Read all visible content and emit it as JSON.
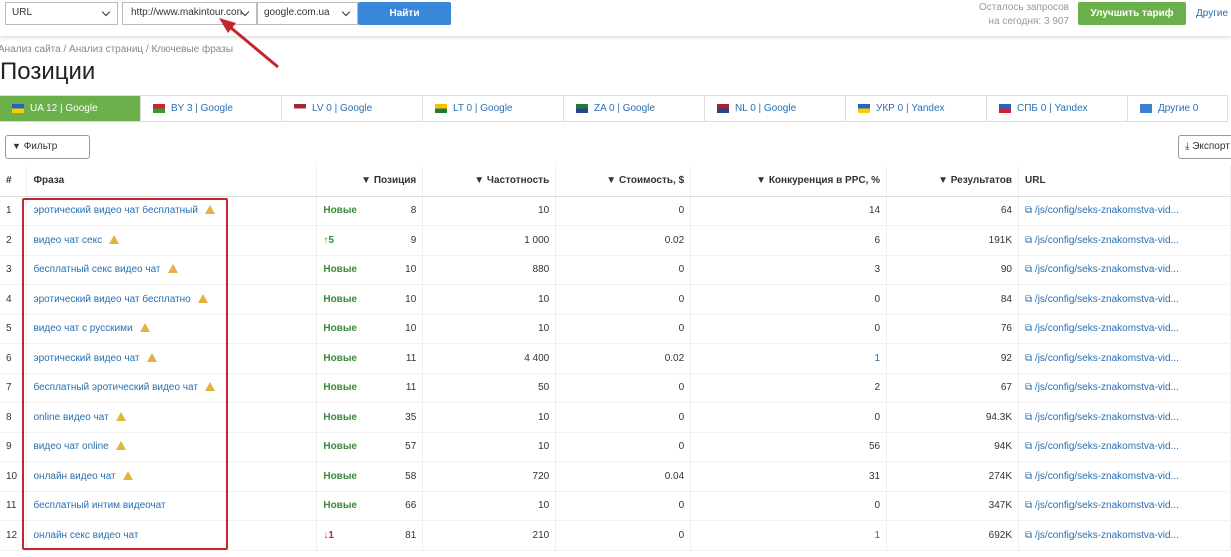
{
  "toolbar": {
    "url_select": "URL",
    "url_input": "http://www.makintour.con",
    "engine_select": "google.com.ua",
    "search_button": "Найти",
    "quota_line1": "Осталось запросов",
    "quota_line2": "на сегодня: 3 907",
    "upgrade_button": "Улучшить тариф",
    "other_link": "Другие"
  },
  "breadcrumbs": "Анализ сайта / Анализ страниц / Ключевые фразы",
  "title": "Позиции",
  "tabs": [
    {
      "label": "UA 12 | Google",
      "flag": [
        "#2a5fc4",
        "#f5d000"
      ]
    },
    {
      "label": "BY 3 | Google",
      "flag": [
        "#d02030",
        "#2f9a3c"
      ]
    },
    {
      "label": "LV 0 | Google",
      "flag": [
        "#a02a35",
        "#ffffff"
      ]
    },
    {
      "label": "LT 0 | Google",
      "flag": [
        "#f6c100",
        "#1f7a3c"
      ]
    },
    {
      "label": "ZA 0 | Google",
      "flag": [
        "#1f7a3c",
        "#2d3f8f"
      ]
    },
    {
      "label": "NL 0 | Google",
      "flag": [
        "#b02030",
        "#21468b"
      ]
    },
    {
      "label": "УКР 0 | Yandex",
      "flag": [
        "#2a5fc4",
        "#f5d000"
      ]
    },
    {
      "label": "СПБ 0 | Yandex",
      "flag": [
        "#2a5fc4",
        "#d02030"
      ]
    },
    {
      "label": "Другие 0",
      "flag": [
        "#3a7fd0",
        "#3a7fd0"
      ]
    }
  ],
  "filter_button": "Фильтр",
  "export_button": "Экспорт",
  "table": {
    "columns": [
      "#",
      "Фраза",
      "Позиция",
      "Частотность",
      "Стоимость, $",
      "Конкуренция в PPC, %",
      "Результатов",
      "URL"
    ],
    "rows": [
      [
        "1",
        "эротический видео чат бесплатный",
        "Новые",
        "8",
        "10",
        "0",
        "14",
        "64",
        "/js/config/seks-znakomstva-vid..."
      ],
      [
        "2",
        "видео чат секс",
        "↑5",
        "9",
        "1 000",
        "0.02",
        "6",
        "191K",
        "/js/config/seks-znakomstva-vid..."
      ],
      [
        "3",
        "бесплатный секс видео чат",
        "Новые",
        "10",
        "880",
        "0",
        "3",
        "90",
        "/js/config/seks-znakomstva-vid..."
      ],
      [
        "4",
        "эротический видео чат бесплатно",
        "Новые",
        "10",
        "10",
        "0",
        "0",
        "84",
        "/js/config/seks-znakomstva-vid..."
      ],
      [
        "5",
        "видео чат с русскими",
        "Новые",
        "10",
        "10",
        "0",
        "0",
        "76",
        "/js/config/seks-znakomstva-vid..."
      ],
      [
        "6",
        "эротический видео чат",
        "Новые",
        "11",
        "4 400",
        "0.02",
        "1",
        "92",
        "/js/config/seks-znakomstva-vid..."
      ],
      [
        "7",
        "бесплатный эротический видео чат",
        "Новые",
        "11",
        "50",
        "0",
        "2",
        "67",
        "/js/config/seks-znakomstva-vid..."
      ],
      [
        "8",
        "online видео чат",
        "Новые",
        "35",
        "10",
        "0",
        "0",
        "94.3K",
        "/js/config/seks-znakomstva-vid..."
      ],
      [
        "9",
        "видео чат online",
        "Новые",
        "57",
        "10",
        "0",
        "56",
        "94K",
        "/js/config/seks-znakomstva-vid..."
      ],
      [
        "10",
        "онлайн видео чат",
        "Новые",
        "58",
        "720",
        "0.04",
        "31",
        "274K",
        "/js/config/seks-znakomstva-vid..."
      ],
      [
        "11",
        "бесплатный интим видеочат",
        "Новые",
        "66",
        "10",
        "0",
        "0",
        "347K",
        "/js/config/seks-znakomstva-vid..."
      ],
      [
        "12",
        "онлайн секс видео чат",
        "↓1",
        "81",
        "210",
        "0",
        "1",
        "692K",
        "/js/config/seks-znakomstva-vid..."
      ]
    ],
    "warnings": [
      true,
      true,
      true,
      true,
      true,
      true,
      true,
      true,
      true,
      true,
      false,
      false
    ]
  }
}
